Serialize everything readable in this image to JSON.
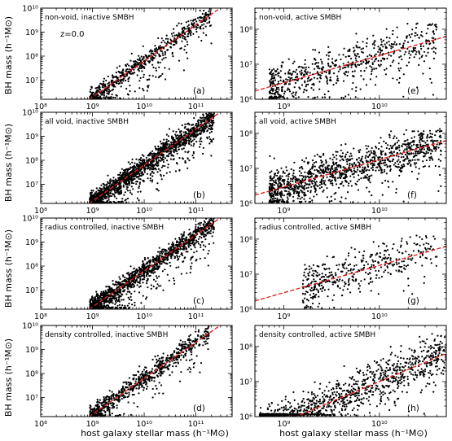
{
  "figure": {
    "ylabel_left": "BH mass (h⁻¹M⊙)",
    "xlabel_left": "host galaxy stellar mass (h⁻¹M⊙)",
    "xlabel_right": "host galaxy stellar mass (h⁻¹M⊙)",
    "redshift_label": "z=0.0",
    "colors": {
      "points": "#000000",
      "fit_line": "#e3211c"
    }
  },
  "chart_data": [
    {
      "type": "scatter",
      "id": "a",
      "title": "non-void, inactive SMBH",
      "letter": "(a)",
      "xscale": "log",
      "yscale": "log",
      "xlim": [
        100000000.0,
        500000000000.0
      ],
      "ylim": [
        1600000.0,
        10000000000.0
      ],
      "xticks": [
        {
          "v": 100000000.0,
          "label": "10⁸"
        },
        {
          "v": 1000000000.0,
          "label": "10⁹"
        },
        {
          "v": 10000000000.0,
          "label": "10¹⁰"
        },
        {
          "v": 100000000000.0,
          "label": "10¹¹"
        }
      ],
      "yticks": [
        {
          "v": 10000000.0,
          "label": "10⁷"
        },
        {
          "v": 100000000.0,
          "label": "10⁸"
        },
        {
          "v": 1000000000.0,
          "label": "10⁹"
        },
        {
          "v": 10000000000.0,
          "label": "10¹⁰"
        }
      ],
      "fit": {
        "slope": 1.5,
        "intercept": -7.2,
        "x_range": [
          700000000.0,
          500000000000.0
        ]
      },
      "scatter": {
        "n": 700,
        "seed": 11,
        "logx_range": [
          8.95,
          11.3
        ],
        "sigma": 0.22,
        "low_tail": 0.12
      }
    },
    {
      "type": "scatter",
      "id": "e",
      "title": "non-void, active SMBH",
      "letter": "(e)",
      "xscale": "log",
      "yscale": "log",
      "xlim": [
        500000000.0,
        50000000000.0
      ],
      "ylim": [
        1000000.0,
        400000000.0
      ],
      "xticks": [
        {
          "v": 1000000000.0,
          "label": "10⁹"
        },
        {
          "v": 10000000000.0,
          "label": "10¹⁰"
        }
      ],
      "yticks": [
        {
          "v": 1000000.0,
          "label": "10⁶"
        },
        {
          "v": 10000000.0,
          "label": "10⁷"
        },
        {
          "v": 100000000.0,
          "label": "10⁸"
        }
      ],
      "fit": {
        "slope": 0.78,
        "intercept": -0.55,
        "x_range": [
          500000000.0,
          50000000000.0
        ]
      },
      "scatter": {
        "n": 650,
        "seed": 22,
        "logx_range": [
          8.85,
          10.6
        ],
        "sigma": 0.3,
        "sat": 8.1,
        "low_tail": 0.05
      }
    },
    {
      "type": "scatter",
      "id": "b",
      "title": "all void, inactive SMBH",
      "letter": "(b)",
      "xscale": "log",
      "yscale": "log",
      "xlim": [
        100000000.0,
        500000000000.0
      ],
      "ylim": [
        1600000.0,
        10000000000.0
      ],
      "xticks": [
        {
          "v": 100000000.0,
          "label": "10⁸"
        },
        {
          "v": 1000000000.0,
          "label": "10⁹"
        },
        {
          "v": 10000000000.0,
          "label": "10¹⁰"
        },
        {
          "v": 100000000000.0,
          "label": "10¹¹"
        }
      ],
      "yticks": [
        {
          "v": 10000000.0,
          "label": "10⁷"
        },
        {
          "v": 100000000.0,
          "label": "10⁸"
        },
        {
          "v": 1000000000.0,
          "label": "10⁹"
        },
        {
          "v": 10000000000.0,
          "label": "10¹⁰"
        }
      ],
      "fit": {
        "slope": 1.5,
        "intercept": -7.2,
        "x_range": [
          700000000.0,
          500000000000.0
        ]
      },
      "scatter": {
        "n": 1700,
        "seed": 33,
        "logx_range": [
          8.95,
          11.35
        ],
        "sigma": 0.2,
        "low_tail": 0.12
      }
    },
    {
      "type": "scatter",
      "id": "f",
      "title": "all void, active SMBH",
      "letter": "(f)",
      "xscale": "log",
      "yscale": "log",
      "xlim": [
        500000000.0,
        50000000000.0
      ],
      "ylim": [
        1000000.0,
        400000000.0
      ],
      "xticks": [
        {
          "v": 1000000000.0,
          "label": "10⁹"
        },
        {
          "v": 10000000000.0,
          "label": "10¹⁰"
        }
      ],
      "yticks": [
        {
          "v": 1000000.0,
          "label": "10⁶"
        },
        {
          "v": 10000000.0,
          "label": "10⁷"
        },
        {
          "v": 100000000.0,
          "label": "10⁸"
        }
      ],
      "fit": {
        "slope": 0.78,
        "intercept": -0.55,
        "x_range": [
          500000000.0,
          50000000000.0
        ]
      },
      "scatter": {
        "n": 1200,
        "seed": 44,
        "logx_range": [
          8.85,
          10.65
        ],
        "sigma": 0.28,
        "sat": 8.05,
        "low_tail": 0.05
      }
    },
    {
      "type": "scatter",
      "id": "c",
      "title": "radius controlled, inactive SMBH",
      "letter": "(c)",
      "xscale": "log",
      "yscale": "log",
      "xlim": [
        100000000.0,
        500000000000.0
      ],
      "ylim": [
        1600000.0,
        10000000000.0
      ],
      "xticks": [
        {
          "v": 100000000.0,
          "label": "10⁸"
        },
        {
          "v": 1000000000.0,
          "label": "10⁹"
        },
        {
          "v": 10000000000.0,
          "label": "10¹⁰"
        },
        {
          "v": 100000000000.0,
          "label": "10¹¹"
        }
      ],
      "yticks": [
        {
          "v": 10000000.0,
          "label": "10⁷"
        },
        {
          "v": 100000000.0,
          "label": "10⁸"
        },
        {
          "v": 1000000000.0,
          "label": "10⁹"
        },
        {
          "v": 10000000000.0,
          "label": "10¹⁰"
        }
      ],
      "fit": {
        "slope": 1.5,
        "intercept": -7.2,
        "x_range": [
          700000000.0,
          500000000000.0
        ]
      },
      "scatter": {
        "n": 1500,
        "seed": 55,
        "logx_range": [
          8.95,
          11.35
        ],
        "sigma": 0.2,
        "low_tail": 0.13
      }
    },
    {
      "type": "scatter",
      "id": "g",
      "title": "radius controlled, active SMBH",
      "letter": "(g)",
      "xscale": "log",
      "yscale": "log",
      "xlim": [
        500000000.0,
        50000000000.0
      ],
      "ylim": [
        1000000.0,
        400000000.0
      ],
      "xticks": [
        {
          "v": 1000000000.0,
          "label": "10⁹"
        },
        {
          "v": 10000000000.0,
          "label": "10¹⁰"
        }
      ],
      "yticks": [
        {
          "v": 1000000.0,
          "label": "10⁶"
        },
        {
          "v": 10000000.0,
          "label": "10⁷"
        },
        {
          "v": 100000000.0,
          "label": "10⁸"
        }
      ],
      "fit": {
        "slope": 0.78,
        "intercept": -0.55,
        "x_range": [
          500000000.0,
          50000000000.0
        ]
      },
      "scatter": {
        "n": 420,
        "seed": 66,
        "logx_range": [
          9.2,
          10.6
        ],
        "sigma": 0.3,
        "sat": 8.05,
        "low_tail": 0.04
      }
    },
    {
      "type": "scatter",
      "id": "d",
      "title": "density controlled, inactive SMBH",
      "letter": "(d)",
      "xscale": "log",
      "yscale": "log",
      "xlim": [
        100000000.0,
        500000000000.0
      ],
      "ylim": [
        1600000.0,
        10000000000.0
      ],
      "xticks": [
        {
          "v": 100000000.0,
          "label": "10⁸"
        },
        {
          "v": 1000000000.0,
          "label": "10⁹"
        },
        {
          "v": 10000000000.0,
          "label": "10¹⁰"
        },
        {
          "v": 100000000000.0,
          "label": "10¹¹"
        }
      ],
      "yticks": [
        {
          "v": 10000000.0,
          "label": "10⁷"
        },
        {
          "v": 100000000.0,
          "label": "10⁸"
        },
        {
          "v": 1000000000.0,
          "label": "10⁹"
        },
        {
          "v": 10000000000.0,
          "label": "10¹⁰"
        }
      ],
      "fit": {
        "slope": 1.5,
        "intercept": -7.2,
        "x_range": [
          700000000.0,
          500000000000.0
        ]
      },
      "scatter": {
        "n": 800,
        "seed": 77,
        "logx_range": [
          8.95,
          11.25
        ],
        "sigma": 0.2,
        "low_tail": 0.1
      }
    },
    {
      "type": "scatter",
      "id": "h",
      "title": "density controlled, active SMBH",
      "letter": "(h)",
      "xscale": "log",
      "yscale": "log",
      "xlim": [
        500000000.0,
        50000000000.0
      ],
      "ylim": [
        1000000.0,
        400000000.0
      ],
      "xticks": [
        {
          "v": 1000000000.0,
          "label": "10⁹"
        },
        {
          "v": 10000000000.0,
          "label": "10¹⁰"
        }
      ],
      "yticks": [
        {
          "v": 1000000.0,
          "label": "10⁶"
        },
        {
          "v": 10000000.0,
          "label": "10⁷"
        },
        {
          "v": 100000000.0,
          "label": "10⁸"
        }
      ],
      "fit": {
        "slope": 1.15,
        "intercept": -4.5,
        "x_range": [
          500000000.0,
          50000000000.0
        ]
      },
      "scatter": {
        "n": 1100,
        "seed": 88,
        "logx_range": [
          8.75,
          10.7
        ],
        "sigma": 0.3,
        "sat": 8.3,
        "low_tail": 0.03
      }
    }
  ]
}
